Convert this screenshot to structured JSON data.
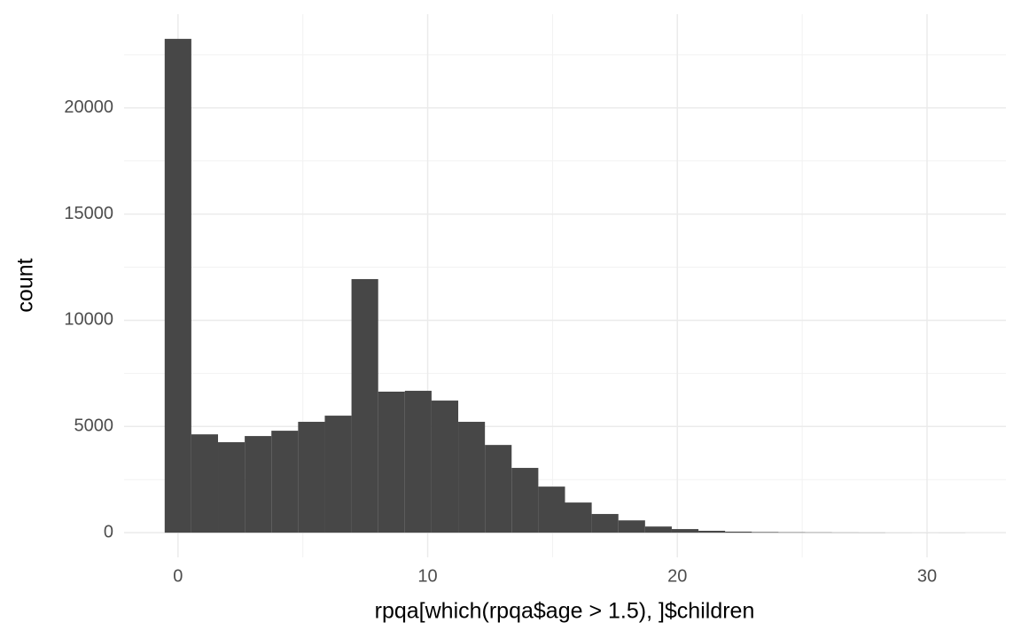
{
  "chart_data": {
    "type": "histogram",
    "x_label": "rpqa[which(rpqa$age > 1.5), ]$children",
    "y_label": "count",
    "bins": [
      -0.534,
      0.534,
      1.603,
      2.672,
      3.741,
      4.81,
      5.879,
      6.948,
      8.017,
      9.086,
      10.155,
      11.224,
      12.293,
      13.362,
      14.431,
      15.5,
      16.569,
      17.638,
      18.707,
      19.776,
      20.845,
      21.914,
      22.983,
      24.052,
      25.121,
      26.19,
      27.259,
      28.328,
      29.397,
      30.466,
      31.534
    ],
    "values": [
      23250,
      4630,
      4260,
      4550,
      4800,
      5220,
      5510,
      11940,
      6640,
      6680,
      6220,
      5220,
      4130,
      3050,
      2170,
      1420,
      880,
      580,
      290,
      170,
      90,
      50,
      30,
      20,
      15,
      10,
      8,
      3,
      2,
      3
    ],
    "color": "#474747",
    "xlim": [
      -2.16,
      33.16
    ],
    "ylim": [
      -1162,
      24412
    ],
    "xticks": [
      0,
      10,
      20,
      30
    ],
    "yticks": [
      0,
      5000,
      10000,
      15000,
      20000
    ],
    "x_minor_ticks": [
      5,
      15,
      25
    ],
    "y_minor_ticks": [
      2500,
      7500,
      12500,
      17500,
      22500
    ],
    "grid": true
  }
}
